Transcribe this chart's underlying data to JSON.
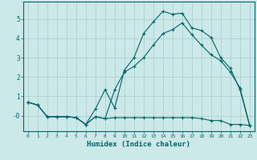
{
  "xlabel": "Humidex (Indice chaleur)",
  "bg_color": "#cce8e8",
  "line_color": "#006666",
  "grid_color": "#aacccc",
  "x_ticks": [
    0,
    1,
    2,
    3,
    4,
    5,
    6,
    7,
    8,
    9,
    10,
    11,
    12,
    13,
    14,
    15,
    16,
    17,
    18,
    19,
    20,
    21,
    22,
    23
  ],
  "y_ticks": [
    0,
    1,
    2,
    3,
    4,
    5
  ],
  "y_tick_labels": [
    "-0",
    "1",
    "2",
    "3",
    "4",
    "5"
  ],
  "ylim": [
    -0.8,
    5.9
  ],
  "xlim": [
    -0.5,
    23.5
  ],
  "line1_x": [
    0,
    1,
    2,
    3,
    4,
    5,
    6,
    7,
    8,
    9,
    10,
    11,
    12,
    13,
    14,
    15,
    16,
    17,
    18,
    19,
    20,
    21,
    22,
    23
  ],
  "line1_y": [
    0.7,
    0.55,
    -0.05,
    -0.05,
    -0.05,
    -0.1,
    -0.45,
    -0.05,
    -0.15,
    -0.1,
    -0.1,
    -0.1,
    -0.1,
    -0.1,
    -0.1,
    -0.1,
    -0.1,
    -0.1,
    -0.15,
    -0.25,
    -0.25,
    -0.45,
    -0.45,
    -0.5
  ],
  "line2_x": [
    0,
    1,
    2,
    3,
    4,
    5,
    6,
    7,
    8,
    9,
    10,
    11,
    12,
    13,
    14,
    15,
    16,
    17,
    18,
    19,
    20,
    21,
    22,
    23
  ],
  "line2_y": [
    0.7,
    0.55,
    -0.05,
    -0.05,
    -0.05,
    -0.1,
    -0.45,
    0.35,
    1.35,
    0.4,
    2.35,
    3.0,
    4.25,
    4.85,
    5.4,
    5.25,
    5.3,
    4.55,
    4.4,
    4.05,
    3.0,
    2.45,
    1.35,
    -0.5
  ],
  "line3_x": [
    0,
    1,
    2,
    3,
    4,
    5,
    6,
    7,
    8,
    9,
    10,
    11,
    12,
    13,
    14,
    15,
    16,
    17,
    18,
    19,
    20,
    21,
    22,
    23
  ],
  "line3_y": [
    0.7,
    0.55,
    -0.05,
    -0.05,
    -0.05,
    -0.1,
    -0.45,
    -0.05,
    -0.15,
    1.35,
    2.25,
    2.55,
    3.0,
    3.65,
    4.25,
    4.45,
    4.8,
    4.2,
    3.65,
    3.15,
    2.85,
    2.25,
    1.45,
    -0.5
  ]
}
